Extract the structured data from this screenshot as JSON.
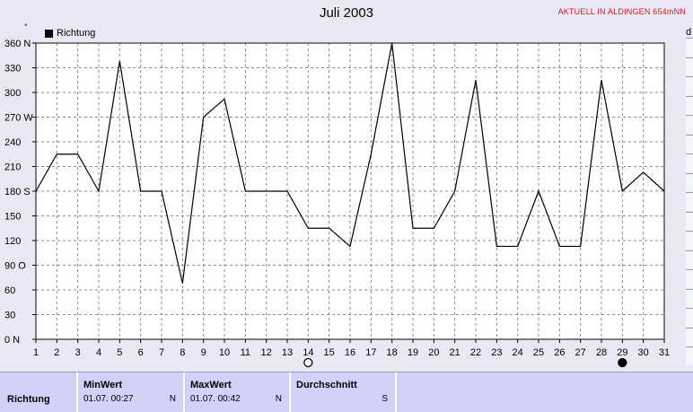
{
  "title": "Juli 2003",
  "station": "AKTUELL IN ALDINGEN 654mNN",
  "degree_mark": "°",
  "right_edge_char": "d",
  "chart_data": {
    "type": "line",
    "series": [
      {
        "name": "Richtung",
        "values": [
          180,
          225,
          225,
          180,
          338,
          180,
          180,
          68,
          270,
          292,
          180,
          180,
          180,
          135,
          135,
          113,
          225,
          360,
          135,
          135,
          180,
          315,
          113,
          113,
          180,
          113,
          113,
          315,
          180,
          203,
          180
        ]
      }
    ],
    "x": [
      1,
      2,
      3,
      4,
      5,
      6,
      7,
      8,
      9,
      10,
      11,
      12,
      13,
      14,
      15,
      16,
      17,
      18,
      19,
      20,
      21,
      22,
      23,
      24,
      25,
      26,
      27,
      28,
      29,
      30,
      31
    ],
    "x_tick_labels": [
      "1",
      "2",
      "3",
      "4",
      "5",
      "6",
      "7",
      "8",
      "9",
      "10",
      "11",
      "12",
      "13",
      "14",
      "15",
      "16",
      "17",
      "18",
      "19",
      "20",
      "21",
      "22",
      "23",
      "24",
      "25",
      "26",
      "27",
      "28",
      "29",
      "30",
      "31"
    ],
    "y_ticks": [
      0,
      30,
      60,
      90,
      120,
      150,
      180,
      210,
      240,
      270,
      300,
      330,
      360
    ],
    "y_tick_labels": [
      "0  N",
      "30",
      "60",
      "90  O",
      "120",
      "150",
      "180 S",
      "210",
      "240",
      "270 W",
      "300",
      "330",
      "360 N"
    ],
    "ylim": [
      0,
      360
    ],
    "xlim": [
      1,
      31
    ],
    "grid": true,
    "legend": "top-left",
    "moon_phases": [
      {
        "day": 14,
        "phase": "full-moon"
      },
      {
        "day": 29,
        "phase": "new-moon"
      }
    ],
    "line_color": "#000000",
    "plot_background": "#ffffff",
    "grid_color": "#8a8a8a"
  },
  "legend_label": "Richtung",
  "stats": {
    "row_label": "Richtung",
    "min": {
      "header": "MinWert",
      "date": "01.07.  00:27",
      "dir": "N"
    },
    "max": {
      "header": "MaxWert",
      "date": "01.07.  00:42",
      "dir": "N"
    },
    "avg": {
      "header": "Durchschnitt",
      "dir": "S"
    }
  },
  "colors": {
    "station_text": "#e01818",
    "panel_bg": "#d0d0f8",
    "page_bg": "#e9e9f5"
  }
}
